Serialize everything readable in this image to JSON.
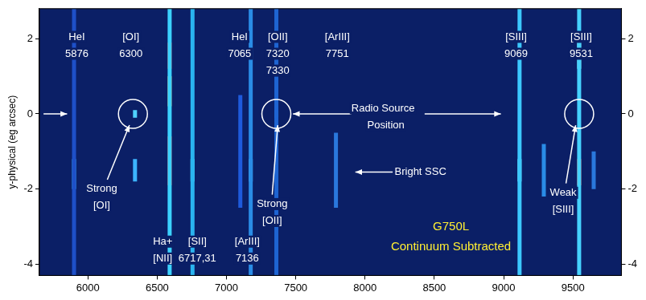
{
  "chart_data": {
    "type": "line",
    "ylabel": "y-physical (eg arcsec)",
    "xlim": [
      5650,
      9850
    ],
    "xticks": [
      6000,
      6500,
      7000,
      7500,
      8000,
      8500,
      9000,
      9500
    ],
    "ylim": [
      -4.3,
      2.8
    ],
    "yticks": [
      -4,
      -2,
      0,
      2
    ],
    "y2lim": [
      -4.3,
      2.8
    ],
    "y2ticks": [
      -4,
      -2,
      0,
      2
    ],
    "grid": false,
    "legend": false,
    "series": [
      {
        "x": [
          5900,
          5900
        ],
        "values": [
          -4.3,
          2.8
        ],
        "color": "#1e50c8"
      },
      {
        "x": [
          5900,
          5900
        ],
        "values": [
          -2.0,
          -1.2
        ],
        "color": "#3cc8ff"
      },
      {
        "x": [
          6340,
          6340
        ],
        "values": [
          -1.8,
          -1.2
        ],
        "color": "#3cb4ff"
      },
      {
        "x": [
          6340,
          6340
        ],
        "values": [
          -0.1,
          0.1
        ],
        "color": "#50d2ff"
      },
      {
        "x": [
          6590,
          6590
        ],
        "values": [
          -4.3,
          2.8
        ],
        "color": "#3cd2ff"
      },
      {
        "x": [
          6590,
          6590
        ],
        "values": [
          0.2,
          1.0
        ],
        "color": "#ffa030"
      },
      {
        "x": [
          6590,
          6590
        ],
        "values": [
          -1.9,
          -0.6
        ],
        "color": "#ff3c28"
      },
      {
        "x": [
          6590,
          6590
        ],
        "values": [
          1.2,
          1.9
        ],
        "color": "#e83020"
      },
      {
        "x": [
          6755,
          6755
        ],
        "values": [
          -4.3,
          2.8
        ],
        "color": "#2ab4f0"
      },
      {
        "x": [
          6755,
          6755
        ],
        "values": [
          -1.8,
          -1.2
        ],
        "color": "#5ae6ff"
      },
      {
        "x": [
          7100,
          7100
        ],
        "values": [
          -2.5,
          0.5
        ],
        "color": "#1e5adc"
      },
      {
        "x": [
          7175,
          7175
        ],
        "values": [
          -4.3,
          2.8
        ],
        "color": "#2a8ce6"
      },
      {
        "x": [
          7175,
          7175
        ],
        "values": [
          -1.8,
          -1.2
        ],
        "color": "#50d2ff"
      },
      {
        "x": [
          7360,
          7360
        ],
        "values": [
          -4.3,
          2.8
        ],
        "color": "#1e64d2"
      },
      {
        "x": [
          7360,
          7360
        ],
        "values": [
          -0.1,
          0.1
        ],
        "color": "#5ae6ff"
      },
      {
        "x": [
          7360,
          7360
        ],
        "values": [
          -1.8,
          -1.2
        ],
        "color": "#50d2ff"
      },
      {
        "x": [
          7360,
          7360
        ],
        "values": [
          1.0,
          1.8
        ],
        "color": "#3cb4f0"
      },
      {
        "x": [
          7790,
          7790
        ],
        "values": [
          -2.5,
          -0.5
        ],
        "color": "#2a78dc"
      },
      {
        "x": [
          9115,
          9115
        ],
        "values": [
          -4.3,
          2.8
        ],
        "color": "#3cc8ff"
      },
      {
        "x": [
          9115,
          9115
        ],
        "values": [
          -1.8,
          -1.2
        ],
        "color": "#78f0ff"
      },
      {
        "x": [
          9290,
          9290
        ],
        "values": [
          -2.2,
          -0.8
        ],
        "color": "#2a8ce6"
      },
      {
        "x": [
          9545,
          9545
        ],
        "values": [
          -4.3,
          2.8
        ],
        "color": "#46d2ff"
      },
      {
        "x": [
          9545,
          9545
        ],
        "values": [
          1.2,
          2.2
        ],
        "color": "#8cf0e6"
      },
      {
        "x": [
          9545,
          9545
        ],
        "values": [
          -1.9,
          -1.2
        ],
        "color": "#ff5a3c"
      },
      {
        "x": [
          9650,
          9650
        ],
        "values": [
          -2.0,
          -1.0
        ],
        "color": "#2a78dc"
      }
    ],
    "circles": [
      {
        "x": 6325,
        "y": 0
      },
      {
        "x": 7360,
        "y": 0
      },
      {
        "x": 9545,
        "y": 0
      }
    ],
    "arrows": [
      {
        "from": [
          5680,
          0
        ],
        "to": [
          5850,
          0
        ]
      },
      {
        "from": [
          7900,
          0
        ],
        "to": [
          7480,
          0
        ]
      },
      {
        "from": [
          8430,
          0
        ],
        "to": [
          8980,
          0
        ]
      },
      {
        "from": [
          6140,
          -1.75
        ],
        "to": [
          6300,
          -0.3
        ]
      },
      {
        "from": [
          7330,
          -2.15
        ],
        "to": [
          7370,
          -0.3
        ]
      },
      {
        "from": [
          8200,
          -1.55
        ],
        "to": [
          7930,
          -1.55
        ]
      },
      {
        "from": [
          9450,
          -1.85
        ],
        "to": [
          9520,
          -0.3
        ]
      }
    ],
    "annotations": [
      {
        "text": "HeI",
        "x": 5920,
        "y": 2.05,
        "color": "#ffffff"
      },
      {
        "text": "5876",
        "x": 5920,
        "y": 1.6,
        "color": "#ffffff"
      },
      {
        "text": "[OI]",
        "x": 6310,
        "y": 2.05,
        "color": "#ffffff"
      },
      {
        "text": "6300",
        "x": 6310,
        "y": 1.6,
        "color": "#ffffff"
      },
      {
        "text": "HeI",
        "x": 7095,
        "y": 2.05,
        "color": "#ffffff"
      },
      {
        "text": "7065",
        "x": 7095,
        "y": 1.6,
        "color": "#ffffff"
      },
      {
        "text": "[OII]",
        "x": 7370,
        "y": 2.05,
        "color": "#ffffff"
      },
      {
        "text": "7320",
        "x": 7370,
        "y": 1.6,
        "color": "#ffffff"
      },
      {
        "text": "7330",
        "x": 7370,
        "y": 1.15,
        "color": "#ffffff"
      },
      {
        "text": "[ArIII]",
        "x": 7800,
        "y": 2.05,
        "color": "#ffffff"
      },
      {
        "text": "7751",
        "x": 7800,
        "y": 1.6,
        "color": "#ffffff"
      },
      {
        "text": "[SIII]",
        "x": 9090,
        "y": 2.05,
        "color": "#ffffff"
      },
      {
        "text": "9069",
        "x": 9090,
        "y": 1.6,
        "color": "#ffffff"
      },
      {
        "text": "[SIII]",
        "x": 9560,
        "y": 2.05,
        "color": "#ffffff"
      },
      {
        "text": "9531",
        "x": 9560,
        "y": 1.6,
        "color": "#ffffff"
      },
      {
        "text": "Radio Source",
        "x": 8130,
        "y": 0.15,
        "color": "#ffffff"
      },
      {
        "text": "Position",
        "x": 8150,
        "y": -0.3,
        "color": "#ffffff"
      },
      {
        "text": "Strong",
        "x": 6100,
        "y": -2.0,
        "color": "#ffffff"
      },
      {
        "text": "[OI]",
        "x": 6100,
        "y": -2.45,
        "color": "#ffffff"
      },
      {
        "text": "Strong",
        "x": 7330,
        "y": -2.4,
        "color": "#ffffff"
      },
      {
        "text": "[OII]",
        "x": 7330,
        "y": -2.85,
        "color": "#ffffff"
      },
      {
        "text": "Bright SSC",
        "x": 8400,
        "y": -1.55,
        "color": "#ffffff"
      },
      {
        "text": "Weak",
        "x": 9430,
        "y": -2.1,
        "color": "#ffffff"
      },
      {
        "text": "[SIII]",
        "x": 9430,
        "y": -2.55,
        "color": "#ffffff"
      },
      {
        "text": "Ha+",
        "x": 6540,
        "y": -3.4,
        "color": "#ffffff"
      },
      {
        "text": "[NII]",
        "x": 6540,
        "y": -3.85,
        "color": "#ffffff"
      },
      {
        "text": "[SII]",
        "x": 6790,
        "y": -3.4,
        "color": "#ffffff"
      },
      {
        "text": "6717,31",
        "x": 6790,
        "y": -3.85,
        "color": "#ffffff"
      },
      {
        "text": "[ArIII]",
        "x": 7150,
        "y": -3.4,
        "color": "#ffffff"
      },
      {
        "text": "7136",
        "x": 7150,
        "y": -3.85,
        "color": "#ffffff"
      },
      {
        "text": "G750L",
        "x": 8620,
        "y": -3.0,
        "color": "#ffee33"
      },
      {
        "text": "Continuum Subtracted",
        "x": 8620,
        "y": -3.55,
        "color": "#ffee33"
      }
    ]
  }
}
